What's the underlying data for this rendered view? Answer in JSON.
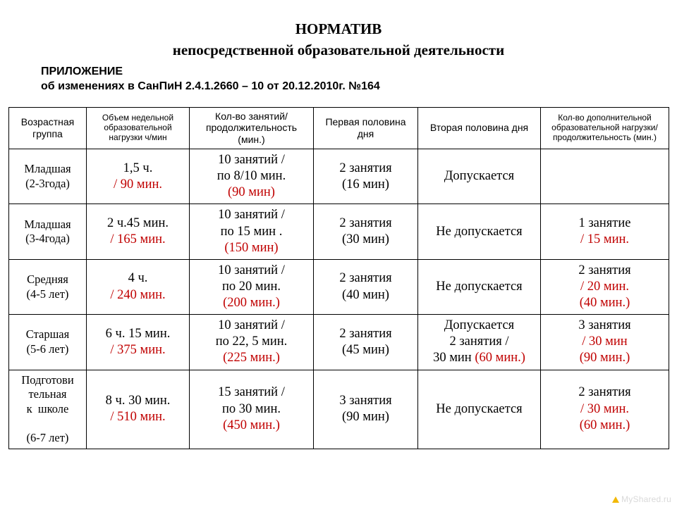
{
  "header": {
    "title_line1": "НОРМАТИВ",
    "title_line2": "непосредственной образовательной деятельности",
    "appendix_line1": "ПРИЛОЖЕНИЕ",
    "appendix_line2": "об изменениях в СанПиН 2.4.1.2660 – 10  от   20.12.2010г. №164"
  },
  "table": {
    "columns": [
      "Возрастная группа",
      "Объем недельной образовательной нагрузки ч/мин",
      "Кол-во занятий/ продолжительность (мин.)",
      "Первая половина дня",
      "Вторая половина дня",
      "Кол-во дополнительной образовательной нагрузки/ продолжительность (мин.)"
    ],
    "rows": [
      {
        "group": "Младшая (2-3года)",
        "load_a": "1,5 ч.",
        "load_b": "/ 90 мин.",
        "count_a": "10 занятий  /",
        "count_b": "по 8/10 мин.",
        "count_c": "(90 мин)",
        "first": "2 занятия (16 мин)",
        "second_a": "Допускается",
        "second_b": "",
        "second_c": "",
        "extra_a": "",
        "extra_b": "",
        "extra_c": ""
      },
      {
        "group": "Младшая (3-4года)",
        "load_a": "2 ч.45 мин.",
        "load_b": "/ 165 мин.",
        "count_a": "10 занятий  /",
        "count_b": "по 15 мин .",
        "count_c": "(150 мин)",
        "first": "2 занятия (30 мин)",
        "second_a": "Не допускается",
        "second_b": "",
        "second_c": "",
        "extra_a": "1 занятие",
        "extra_b": "/ 15 мин.",
        "extra_c": ""
      },
      {
        "group": "Средняя (4-5 лет)",
        "load_a": "4 ч.",
        "load_b": "/ 240 мин.",
        "count_a": "10 занятий  /",
        "count_b": "по 20 мин.",
        "count_c": "(200 мин.)",
        "first": "2 занятия (40 мин)",
        "second_a": "Не допускается",
        "second_b": "",
        "second_c": "",
        "extra_a": "2 занятия",
        "extra_b": "/ 20 мин.",
        "extra_c": "(40 мин.)"
      },
      {
        "group": "Старшая (5-6 лет)",
        "load_a": "6 ч. 15 мин.",
        "load_b": "/ 375 мин.",
        "count_a": "10 занятий  /",
        "count_b": "по 22, 5 мин.",
        "count_c": "(225 мин.)",
        "first": "2 занятия (45 мин)",
        "second_a": "Допускается",
        "second_b": "2 занятия  /",
        "second_c": "30 мин  (60 мин.)",
        "extra_a": "3 занятия",
        "extra_b": "/ 30 мин",
        "extra_c": "(90 мин.)"
      },
      {
        "group": "Подготови тельная к  школе (6-7 лет)",
        "load_a": "8 ч. 30 мин.",
        "load_b": "/ 510 мин.",
        "count_a": "15 занятий  /",
        "count_b": "по 30 мин.",
        "count_c": "(450 мин.)",
        "first": "3 занятия (90 мин)",
        "second_a": "Не допускается",
        "second_b": "",
        "second_c": "",
        "extra_a": "2 занятия",
        "extra_b": "/ 30 мин.",
        "extra_c": "(60 мин.)"
      }
    ]
  },
  "watermark": "MyShared.ru"
}
